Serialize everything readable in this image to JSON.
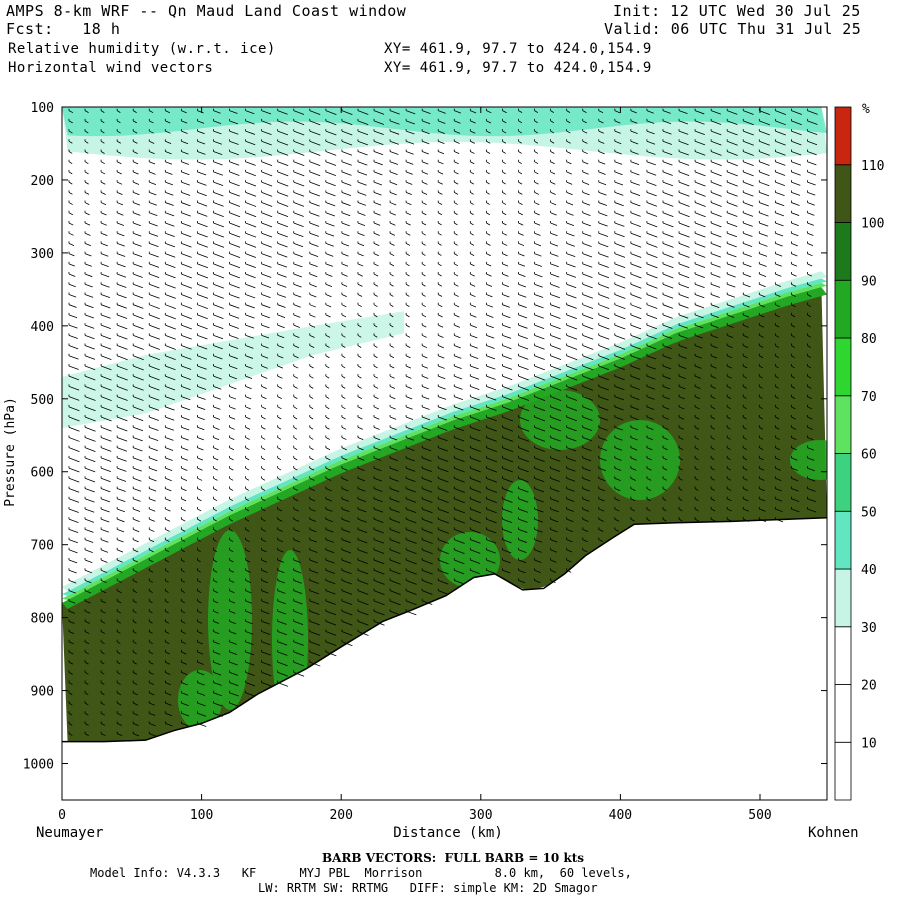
{
  "header": {
    "title": "AMPS 8-km WRF -- Qn Maud Land Coast window",
    "init": "Init: 12 UTC Wed 30 Jul 25",
    "fcst": "Fcst:   18 h",
    "valid": "Valid: 06 UTC Thu 31 Jul 25",
    "field1": "Relative humidity (w.r.t. ice)",
    "field1_xy": "XY= 461.9, 97.7 to 424.0,154.9",
    "field2": "Horizontal wind vectors",
    "field2_xy": "XY= 461.9, 97.7 to 424.0,154.9"
  },
  "footer": {
    "barb_note": "BARB VECTORS:  FULL BARB = 10 kts",
    "model_info": "Model Info: V4.3.3   KF      MYJ PBL  Morrison          8.0 km,  60 levels,",
    "physics": "LW: RRTM SW: RRTMG   DIFF: simple KM: 2D Smagor"
  },
  "chart_data": {
    "type": "heatmap",
    "xlabel": "Distance (km)",
    "ylabel": "Pressure (hPa)",
    "x_start_label": "Neumayer",
    "x_end_label": "Kohnen",
    "xlim": [
      0,
      548
    ],
    "ylim": [
      1050,
      100
    ],
    "x_ticks": [
      0,
      100,
      200,
      300,
      400,
      500
    ],
    "y_ticks": [
      100,
      200,
      300,
      400,
      500,
      600,
      700,
      800,
      900,
      1000
    ],
    "colorbar": {
      "unit": "%",
      "levels": [
        10,
        20,
        30,
        40,
        50,
        60,
        70,
        80,
        90,
        100,
        110
      ],
      "colors": [
        "#ffffff",
        "#ffffff",
        "#ffffff",
        "#c6f5e6",
        "#62e6c2",
        "#3dd27f",
        "#5fe25f",
        "#2fd62f",
        "#22a822",
        "#1c7a1c",
        "#3f5616",
        "#c8260e"
      ]
    },
    "terrain_surface": [
      [
        0,
        970
      ],
      [
        30,
        970
      ],
      [
        60,
        968
      ],
      [
        80,
        955
      ],
      [
        100,
        945
      ],
      [
        120,
        930
      ],
      [
        140,
        905
      ],
      [
        150,
        895
      ],
      [
        175,
        870
      ],
      [
        200,
        840
      ],
      [
        230,
        805
      ],
      [
        250,
        790
      ],
      [
        275,
        770
      ],
      [
        295,
        745
      ],
      [
        310,
        740
      ],
      [
        330,
        762
      ],
      [
        345,
        760
      ],
      [
        360,
        740
      ],
      [
        375,
        715
      ],
      [
        395,
        690
      ],
      [
        410,
        672
      ],
      [
        440,
        670
      ],
      [
        480,
        668
      ],
      [
        548,
        663
      ]
    ],
    "moist_layer_top": [
      [
        0,
        780
      ],
      [
        40,
        740
      ],
      [
        80,
        700
      ],
      [
        120,
        660
      ],
      [
        160,
        625
      ],
      [
        200,
        590
      ],
      [
        240,
        560
      ],
      [
        280,
        530
      ],
      [
        320,
        505
      ],
      [
        360,
        475
      ],
      [
        400,
        445
      ],
      [
        440,
        410
      ],
      [
        480,
        385
      ],
      [
        520,
        360
      ],
      [
        548,
        345
      ]
    ],
    "barb_note": "BARB VECTORS:  FULL BARB = 10 kts"
  }
}
